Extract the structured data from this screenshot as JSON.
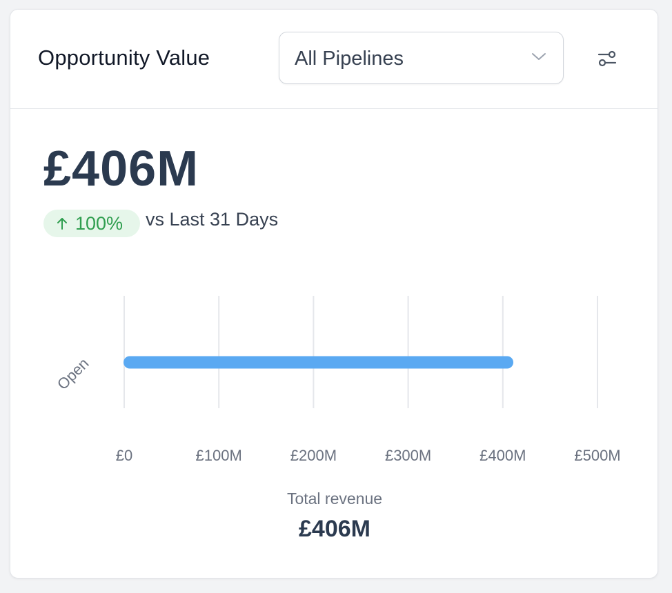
{
  "card": {
    "title": "Opportunity Value",
    "pipeline_select": {
      "value": "All Pipelines"
    },
    "icons": {
      "select": "chevron-down-icon",
      "filter": "filter-sliders-icon",
      "badge": "arrow-up-icon"
    }
  },
  "kpi": {
    "value": "£406M",
    "change": "100%",
    "change_direction": "up",
    "comparison": "vs Last 31 Days"
  },
  "chart_data": {
    "type": "bar",
    "orientation": "horizontal",
    "categories": [
      "Open"
    ],
    "values": [
      406
    ],
    "unit": "£M",
    "xlim": [
      0,
      500
    ],
    "xticks": [
      0,
      100,
      200,
      300,
      400,
      500
    ],
    "xtick_labels": [
      "£0",
      "£100M",
      "£200M",
      "£300M",
      "£400M",
      "£500M"
    ],
    "grid": true,
    "bar_color": "#5aa9f2"
  },
  "summary": {
    "label": "Total revenue",
    "value": "£406M"
  },
  "colors": {
    "accent": "#5aa9f2",
    "positive": "#2f9e4f",
    "positive_bg": "#e6f6ea",
    "text_dark": "#2b3a4f"
  }
}
